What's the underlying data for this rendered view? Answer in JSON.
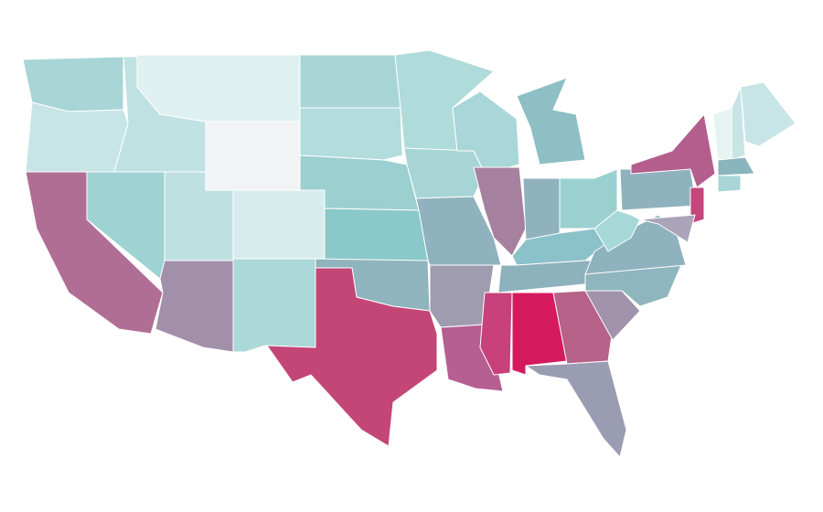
{
  "map": {
    "regions": [
      {
        "color": "#a8d5d6"
      },
      {
        "color": "#c7e5e6"
      },
      {
        "color": "#b06e95"
      },
      {
        "color": "#9fd2d3"
      },
      {
        "color": "#c0e1e2"
      },
      {
        "color": "#dff0f1"
      },
      {
        "color": "#f1f3f5"
      },
      {
        "color": "#bfe0e1"
      },
      {
        "color": "#a28faa"
      },
      {
        "color": "#d7eced"
      },
      {
        "color": "#abd8d9"
      },
      {
        "color": "#a8d6d6"
      },
      {
        "color": "#b3dcdc"
      },
      {
        "color": "#9ccfd0"
      },
      {
        "color": "#8bc8ca"
      },
      {
        "color": "#8fb4bd"
      },
      {
        "color": "#c44676"
      },
      {
        "color": "#b0dbdb"
      },
      {
        "color": "#a7d5d6"
      },
      {
        "color": "#8fb2be"
      },
      {
        "color": "#9f9cb0"
      },
      {
        "color": "#b55f92"
      },
      {
        "color": "#a9d6d8"
      },
      {
        "color": "#a5819f"
      },
      {
        "color": "#8dbfc4"
      },
      {
        "color": "#8fb2be"
      },
      {
        "color": "#9bd0d1"
      },
      {
        "color": "#8bc1c9"
      },
      {
        "color": "#8db1bd"
      },
      {
        "color": "#c8417a"
      },
      {
        "color": "#d41a5d"
      },
      {
        "color": "#b76288"
      },
      {
        "color": "#9a9cb2"
      },
      {
        "color": "#a293ad"
      },
      {
        "color": "#8fb5be"
      },
      {
        "color": "#8fb2bf"
      },
      {
        "color": "#a7d8d8"
      },
      {
        "color": "#8fb2be"
      },
      {
        "color": "#b35e8c"
      },
      {
        "color": "#c4467a"
      },
      {
        "color": "#a9a4b8"
      },
      {
        "color": "#e6f3f3"
      },
      {
        "color": "#c8e5e6"
      },
      {
        "color": "#c7e5e6"
      },
      {
        "color": "#8ab5be"
      },
      {
        "color": "#a8d5d6"
      }
    ]
  }
}
